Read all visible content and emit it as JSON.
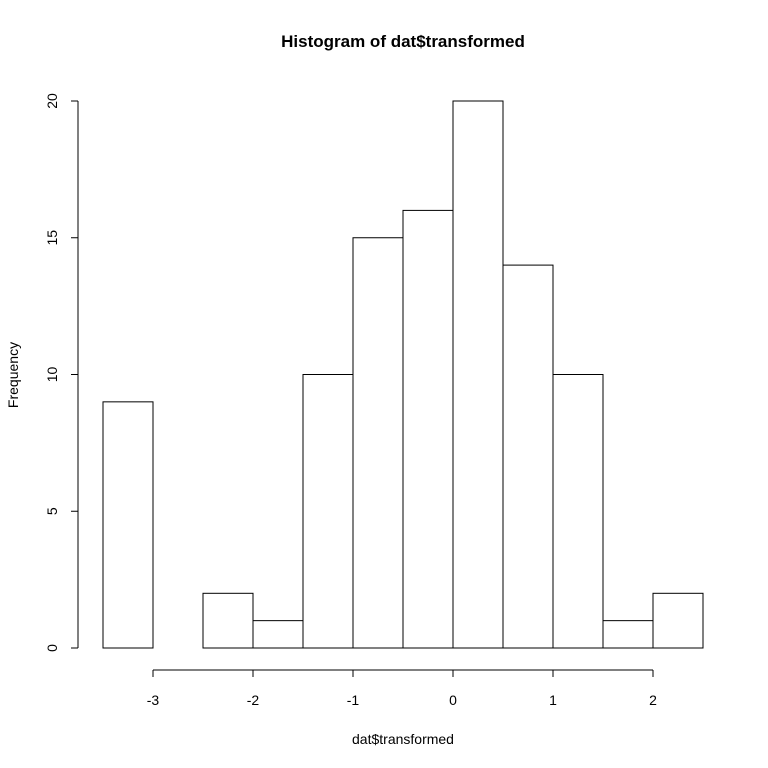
{
  "chart_data": {
    "type": "bar",
    "title": "Histogram of dat$transformed",
    "xlabel": "dat$transformed",
    "ylabel": "Frequency",
    "bins": [
      {
        "x0": -3.5,
        "x1": -3.0,
        "count": 9
      },
      {
        "x0": -3.0,
        "x1": -2.5,
        "count": 0
      },
      {
        "x0": -2.5,
        "x1": -2.0,
        "count": 2
      },
      {
        "x0": -2.0,
        "x1": -1.5,
        "count": 1
      },
      {
        "x0": -1.5,
        "x1": -1.0,
        "count": 10
      },
      {
        "x0": -1.0,
        "x1": -0.5,
        "count": 15
      },
      {
        "x0": -0.5,
        "x1": 0.0,
        "count": 16
      },
      {
        "x0": 0.0,
        "x1": 0.5,
        "count": 20
      },
      {
        "x0": 0.5,
        "x1": 1.0,
        "count": 14
      },
      {
        "x0": 1.0,
        "x1": 1.5,
        "count": 10
      },
      {
        "x0": 1.5,
        "x1": 2.0,
        "count": 1
      },
      {
        "x0": 2.0,
        "x1": 2.5,
        "count": 2
      }
    ],
    "x_ticks": [
      -3,
      -2,
      -1,
      0,
      1,
      2
    ],
    "y_ticks": [
      0,
      5,
      10,
      15,
      20
    ],
    "xlim": [
      -3.5,
      2.5
    ],
    "ylim": [
      0,
      20
    ],
    "grid": false,
    "bar_fill": "#ffffff",
    "bar_stroke": "#000000"
  }
}
